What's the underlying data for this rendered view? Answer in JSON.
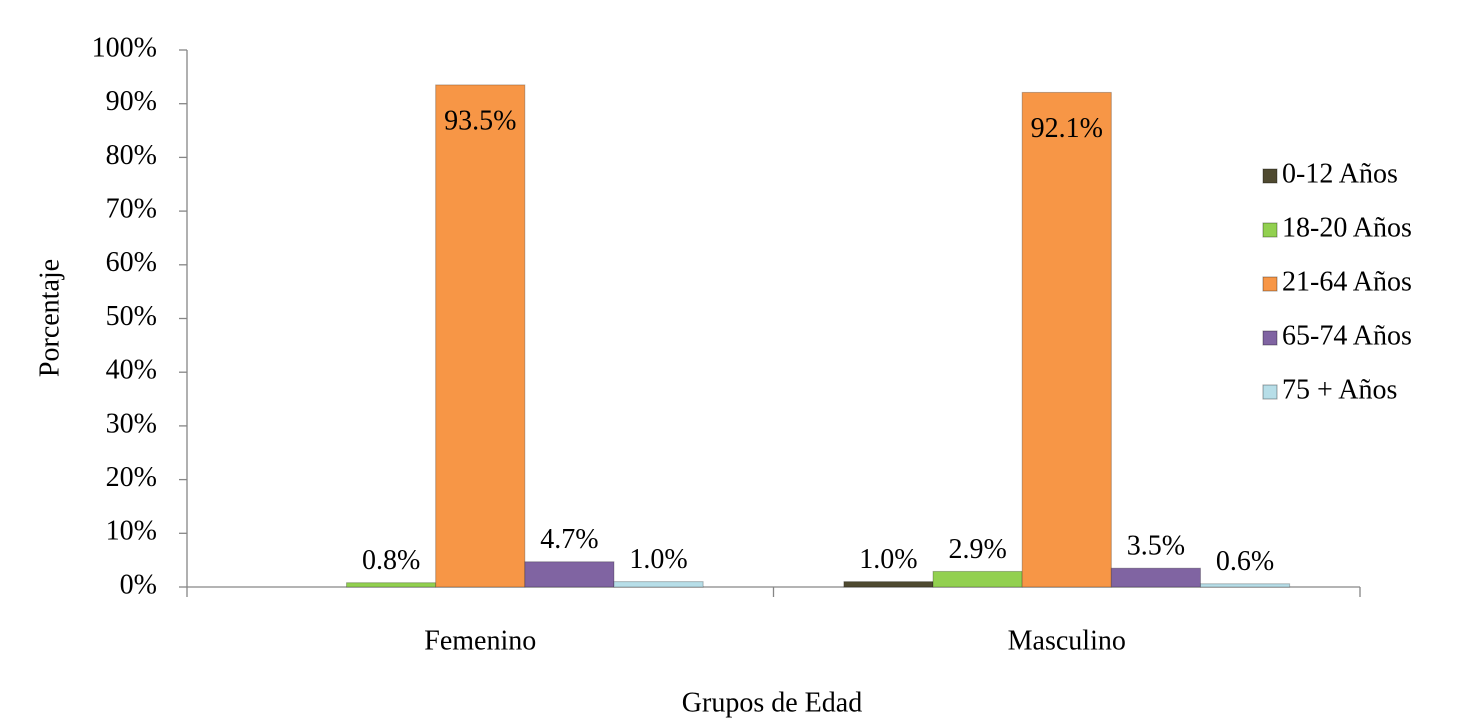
{
  "chart_data": {
    "type": "bar",
    "xlabel": "Grupos de Edad",
    "ylabel": "Porcentaje",
    "categories": [
      "Femenino",
      "Masculino"
    ],
    "series": [
      {
        "name": "0-12 Años",
        "color": "#4f4a30",
        "values": [
          null,
          1.0
        ],
        "value_labels": [
          null,
          "1.0%"
        ]
      },
      {
        "name": "18-20 Años",
        "color": "#92d050",
        "values": [
          0.8,
          2.9
        ],
        "value_labels": [
          "0.8%",
          "2.9%"
        ]
      },
      {
        "name": "21-64 Años",
        "color": "#f79646",
        "values": [
          93.5,
          92.1
        ],
        "value_labels": [
          "93.5%",
          "92.1%"
        ]
      },
      {
        "name": "65-74 Años",
        "color": "#8064a2",
        "values": [
          4.7,
          3.5
        ],
        "value_labels": [
          "4.7%",
          "3.5%"
        ]
      },
      {
        "name": "75 + Años",
        "color": "#b7dee8",
        "values": [
          1.0,
          0.6
        ],
        "value_labels": [
          "1.0%",
          "0.6%"
        ]
      }
    ],
    "ylim": [
      0,
      100
    ],
    "yticks": [
      {
        "value": 0,
        "label": "0%"
      },
      {
        "value": 10,
        "label": "10%"
      },
      {
        "value": 20,
        "label": "20%"
      },
      {
        "value": 30,
        "label": "30%"
      },
      {
        "value": 40,
        "label": "40%"
      },
      {
        "value": 50,
        "label": "50%"
      },
      {
        "value": 60,
        "label": "60%"
      },
      {
        "value": 70,
        "label": "70%"
      },
      {
        "value": 80,
        "label": "80%"
      },
      {
        "value": 90,
        "label": "90%"
      },
      {
        "value": 100,
        "label": "100%"
      }
    ],
    "legend": "right"
  }
}
